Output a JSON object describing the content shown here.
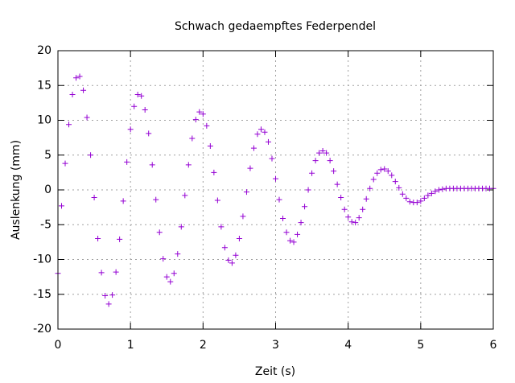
{
  "chart_data": {
    "type": "scatter",
    "title": "Schwach gedaempftes Federpendel",
    "x_label": "Zeit (s)",
    "y_label": "Auslenkung (mm)",
    "x": [
      0,
      0.05,
      0.1,
      0.15,
      0.2,
      0.25,
      0.3,
      0.35,
      0.4,
      0.45,
      0.5,
      0.55,
      0.6,
      0.65,
      0.7,
      0.75,
      0.8,
      0.85,
      0.9,
      0.95,
      1,
      1.05,
      1.1,
      1.15,
      1.2,
      1.25,
      1.3,
      1.35,
      1.4,
      1.45,
      1.5,
      1.55,
      1.6,
      1.65,
      1.7,
      1.75,
      1.8,
      1.85,
      1.9,
      1.95,
      2,
      2.05,
      2.1,
      2.15,
      2.2,
      2.25,
      2.3,
      2.35,
      2.4,
      2.45,
      2.5,
      2.55,
      2.6,
      2.65,
      2.7,
      2.75,
      2.8,
      2.85,
      2.9,
      2.95,
      3,
      3.05,
      3.1,
      3.15,
      3.2,
      3.25,
      3.3,
      3.35,
      3.4,
      3.45,
      3.5,
      3.55,
      3.6,
      3.65,
      3.7,
      3.75,
      3.8,
      3.85,
      3.9,
      3.95,
      4,
      4.05,
      4.1,
      4.15,
      4.2,
      4.25,
      4.3,
      4.35,
      4.4,
      4.45,
      4.5,
      4.55,
      4.6,
      4.65,
      4.7,
      4.75,
      4.8,
      4.85,
      4.9,
      4.95,
      5,
      5.05,
      5.1,
      5.15,
      5.2,
      5.25,
      5.3,
      5.35,
      5.4,
      5.45,
      5.5,
      5.55,
      5.6,
      5.65,
      5.7,
      5.75,
      5.8,
      5.85,
      5.9,
      5.95,
      6
    ],
    "series": [
      {
        "color": "#9400d3",
        "values": [
          -12,
          -2.3,
          3.8,
          9.4,
          13.7,
          16.1,
          16.3,
          14.3,
          10.4,
          5,
          -1.1,
          -7,
          -11.9,
          -15.2,
          -16.4,
          -15.1,
          -11.8,
          -7.1,
          -1.6,
          4,
          8.7,
          12,
          13.7,
          13.5,
          11.5,
          8.1,
          3.6,
          -1.4,
          -6.1,
          -9.9,
          -12.5,
          -13.2,
          -12,
          -9.2,
          -5.3,
          -0.8,
          3.6,
          7.4,
          10.1,
          11.2,
          10.9,
          9.2,
          6.3,
          2.5,
          -1.5,
          -5.3,
          -8.3,
          -10.1,
          -10.5,
          -9.4,
          -7,
          -3.8,
          -0.3,
          3.1,
          6,
          8,
          8.7,
          8.3,
          6.9,
          4.5,
          1.6,
          -1.4,
          -4.1,
          -6.1,
          -7.3,
          -7.5,
          -6.4,
          -4.7,
          -2.4,
          0,
          2.4,
          4.2,
          5.3,
          5.6,
          5.3,
          4.2,
          2.7,
          0.8,
          -1.1,
          -2.8,
          -3.9,
          -4.6,
          -4.7,
          -4,
          -2.8,
          -1.3,
          0.2,
          1.5,
          2.4,
          2.9,
          3,
          2.7,
          2.1,
          1.2,
          0.3,
          -0.6,
          -1.2,
          -1.7,
          -1.8,
          -1.8,
          -1.6,
          -1.2,
          -0.8,
          -0.5,
          -0.2,
          0,
          0.1,
          0.2,
          0.2,
          0.2,
          0.2,
          0.2,
          0.2,
          0.2,
          0.2,
          0.2,
          0.2,
          0.2,
          0.2,
          0.2,
          0.2
        ]
      }
    ],
    "xlim": [
      0,
      6
    ],
    "xticks": [
      0,
      1,
      2,
      3,
      4,
      5,
      6
    ],
    "ylim": [
      -20,
      20
    ],
    "yticks": [
      -20,
      -15,
      -10,
      -5,
      0,
      5,
      10,
      15,
      20
    ],
    "grid": true
  }
}
